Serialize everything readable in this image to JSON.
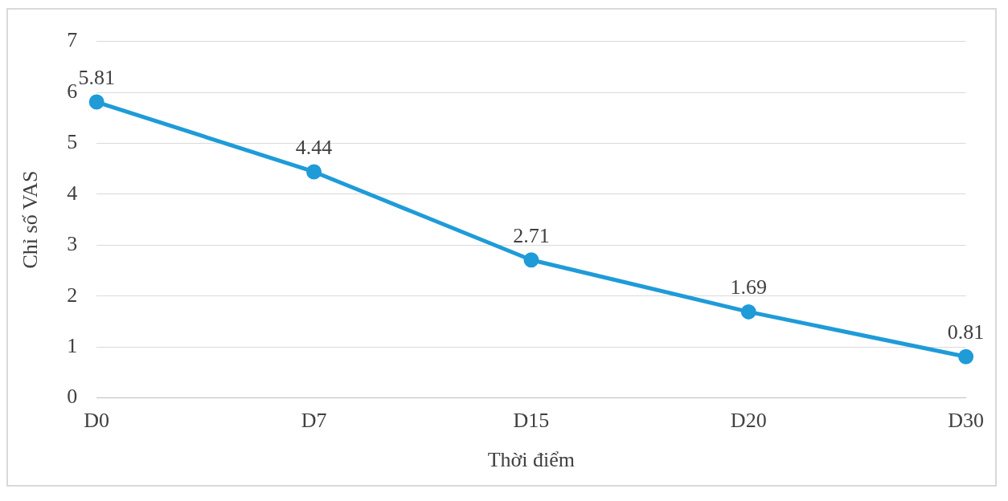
{
  "chart_data": {
    "type": "line",
    "xlabel": "Thời điểm",
    "ylabel": "Chỉ số VAS",
    "categories": [
      "D0",
      "D7",
      "D15",
      "D20",
      "D30"
    ],
    "series": [
      {
        "color": "#1f9bd8",
        "values": [
          5.81,
          4.44,
          2.71,
          1.69,
          0.81
        ]
      }
    ],
    "ylim": [
      0,
      7
    ],
    "yticks": [
      0,
      1,
      2,
      3,
      4,
      5,
      6,
      7
    ],
    "grid": "y",
    "legend": false,
    "marker": "circle",
    "line_style": "solid",
    "data_labels": true
  }
}
